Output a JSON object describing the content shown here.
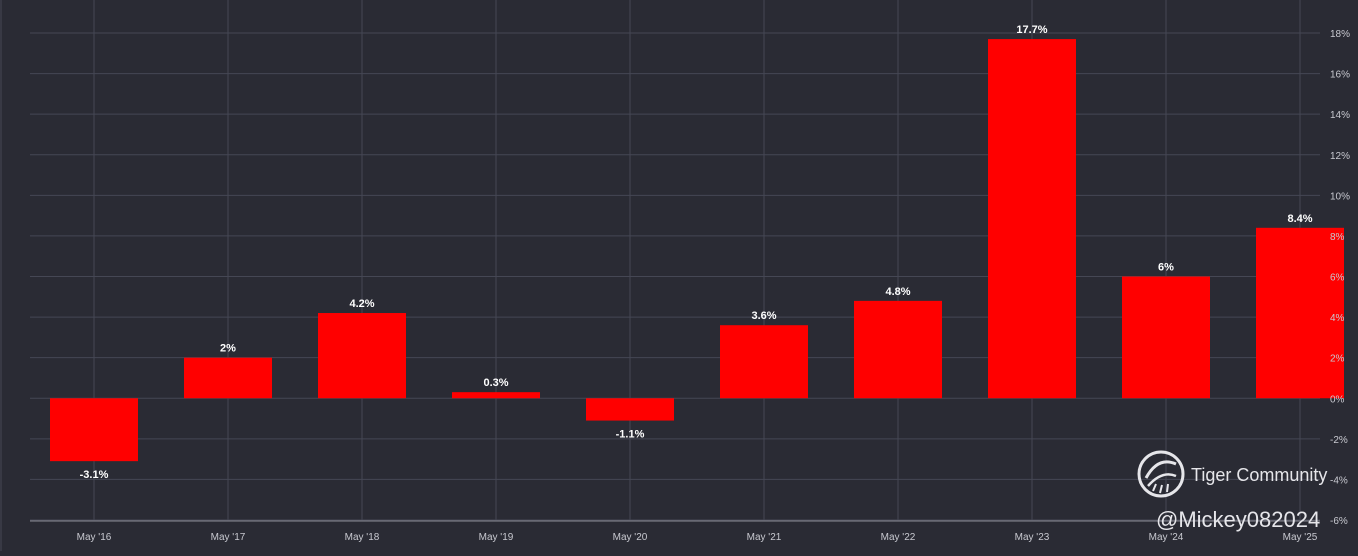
{
  "chart_data": {
    "type": "bar",
    "categories": [
      "May '16",
      "May '17",
      "May '18",
      "May '19",
      "May '20",
      "May '21",
      "May '22",
      "May '23",
      "May '24",
      "May '25"
    ],
    "values": [
      -3.1,
      2,
      4.2,
      0.3,
      -1.1,
      3.6,
      4.8,
      17.7,
      6,
      8.4
    ],
    "data_labels": [
      "-3.1%",
      "2%",
      "4.2%",
      "0.3%",
      "-1.1%",
      "3.6%",
      "4.8%",
      "17.7%",
      "6%",
      "8.4%"
    ],
    "y_ticks": [
      -6,
      -4,
      -2,
      0,
      2,
      4,
      6,
      8,
      10,
      12,
      14,
      16,
      18
    ],
    "y_tick_labels": [
      "-6%",
      "-4%",
      "-2%",
      "0%",
      "2%",
      "4%",
      "6%",
      "8%",
      "10%",
      "12%",
      "14%",
      "16%",
      "18%"
    ],
    "ylim": [
      -6,
      18
    ],
    "y_axis_side": "right",
    "grid": true,
    "bar_color": "#ff0000",
    "background_color": "#2a2b34",
    "title": "",
    "xlabel": "",
    "ylabel": ""
  },
  "watermark": {
    "brand": "Tiger Community",
    "handle": "@Mickey082024"
  }
}
